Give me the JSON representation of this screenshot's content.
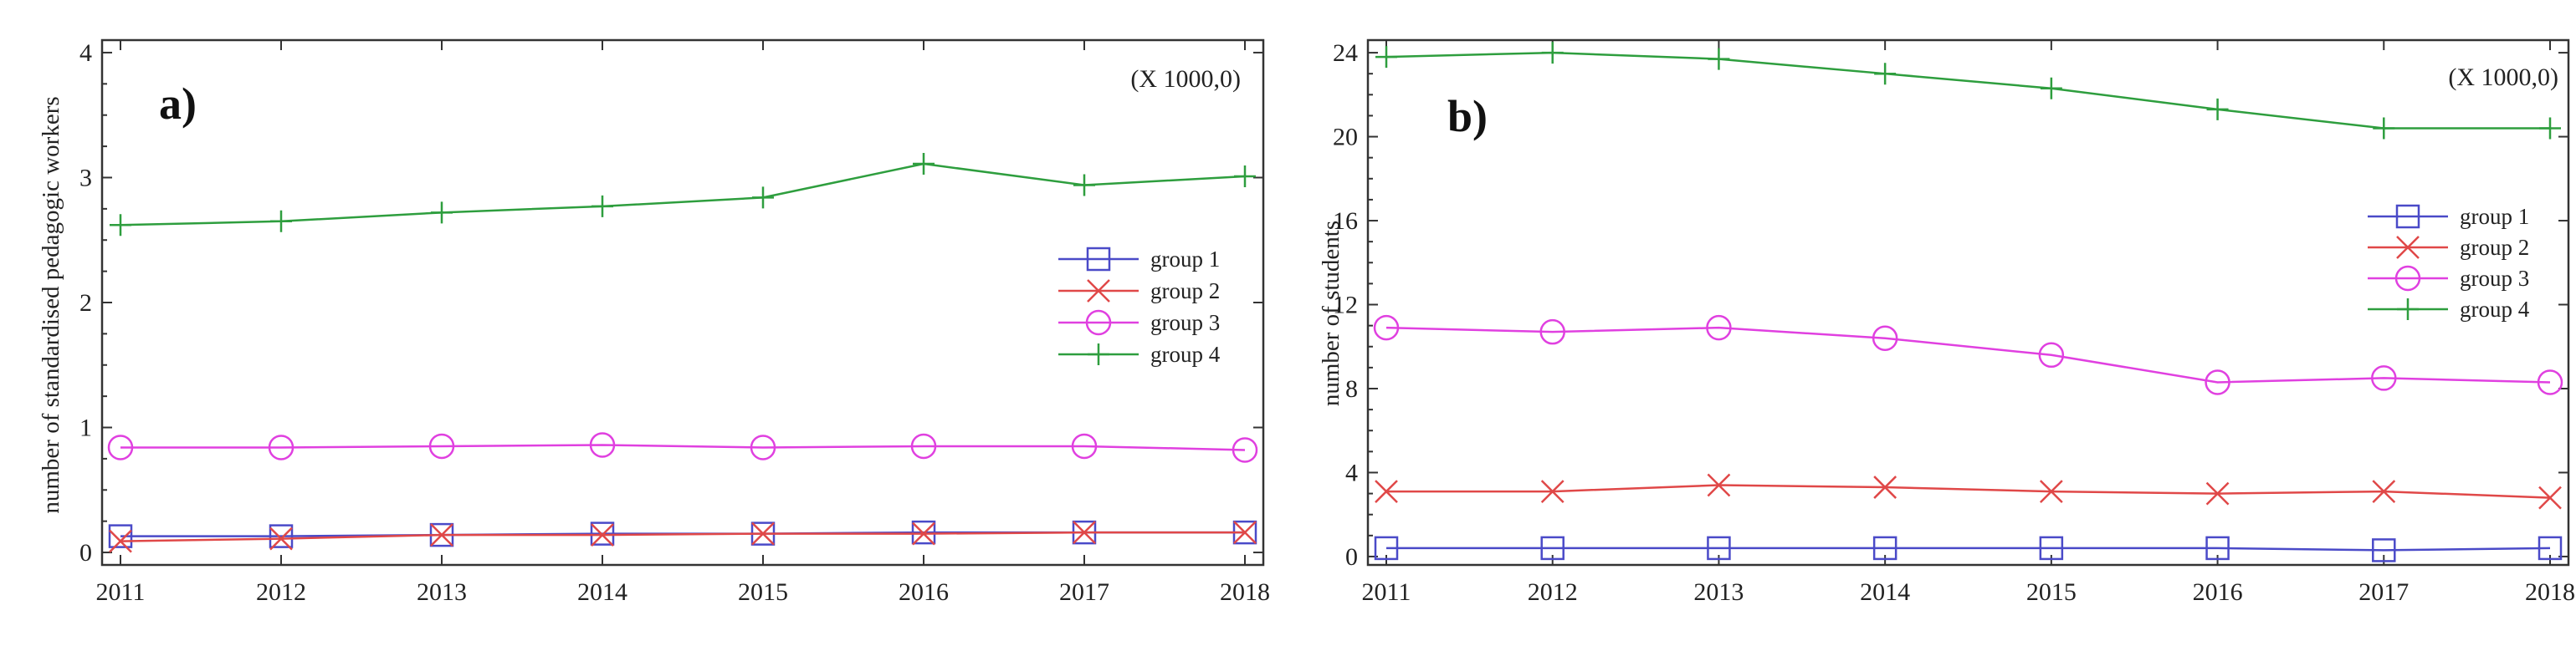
{
  "chart_data": [
    {
      "type": "line",
      "panel_label": "a)",
      "scale_note": "(X 1000,0)",
      "title": "",
      "xlabel": "",
      "ylabel": "number of standardised pedagogic workers",
      "categories": [
        "2011",
        "2012",
        "2013",
        "2014",
        "2015",
        "2016",
        "2017",
        "2018"
      ],
      "ylim": [
        -0.1,
        4.1
      ],
      "yticks": [
        0,
        1,
        2,
        3,
        4
      ],
      "ytick_labels": [
        "0",
        "1",
        "2",
        "3",
        "4"
      ],
      "grid": false,
      "legend_position": "right",
      "series": [
        {
          "name": "group 1",
          "marker": "square",
          "color": "#4a4ac8",
          "values": [
            0.13,
            0.13,
            0.14,
            0.15,
            0.15,
            0.16,
            0.16,
            0.16
          ]
        },
        {
          "name": "group 2",
          "marker": "cross",
          "color": "#e04848",
          "values": [
            0.09,
            0.11,
            0.14,
            0.14,
            0.15,
            0.15,
            0.16,
            0.16
          ]
        },
        {
          "name": "group 3",
          "marker": "circle",
          "color": "#e040e0",
          "values": [
            0.84,
            0.84,
            0.85,
            0.86,
            0.84,
            0.85,
            0.85,
            0.82
          ]
        },
        {
          "name": "group 4",
          "marker": "plus",
          "color": "#2e9e3e",
          "values": [
            2.62,
            2.65,
            2.72,
            2.77,
            2.84,
            3.11,
            2.94,
            3.01
          ]
        }
      ]
    },
    {
      "type": "line",
      "panel_label": "b)",
      "scale_note": "(X 1000,0)",
      "title": "",
      "xlabel": "",
      "ylabel": "number of students",
      "categories": [
        "2011",
        "2012",
        "2013",
        "2014",
        "2015",
        "2016",
        "2017",
        "2018"
      ],
      "ylim": [
        -0.4,
        24.6
      ],
      "yticks": [
        0,
        4,
        8,
        12,
        16,
        20,
        24
      ],
      "ytick_labels": [
        "0",
        "4",
        "8",
        "12",
        "16",
        "20",
        "24"
      ],
      "grid": false,
      "legend_position": "right",
      "series": [
        {
          "name": "group 1",
          "marker": "square",
          "color": "#4a4ac8",
          "values": [
            0.4,
            0.4,
            0.4,
            0.4,
            0.4,
            0.4,
            0.3,
            0.4
          ]
        },
        {
          "name": "group 2",
          "marker": "cross",
          "color": "#e04848",
          "values": [
            3.1,
            3.1,
            3.4,
            3.3,
            3.1,
            3.0,
            3.1,
            2.8
          ]
        },
        {
          "name": "group 3",
          "marker": "circle",
          "color": "#e040e0",
          "values": [
            10.9,
            10.7,
            10.9,
            10.4,
            9.6,
            8.3,
            8.5,
            8.3
          ]
        },
        {
          "name": "group 4",
          "marker": "plus",
          "color": "#2e9e3e",
          "values": [
            23.8,
            24.0,
            23.7,
            23.0,
            22.3,
            21.3,
            20.4,
            20.4
          ]
        }
      ]
    }
  ]
}
